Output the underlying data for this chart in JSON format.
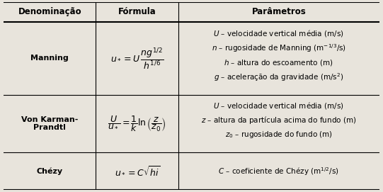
{
  "col_headers": [
    "Denominação",
    "Fórmula",
    "Parâmetros"
  ],
  "bg_color": "#e8e4dc",
  "border_color": "#000000",
  "header_fontsize": 8.5,
  "body_fontsize": 8.0,
  "param_fontsize": 7.5,
  "col_bounds": [
    0.0,
    0.245,
    0.465,
    1.0
  ],
  "row_bounds": [
    1.0,
    0.895,
    0.505,
    0.2,
    0.0
  ],
  "manning_params": [
    "$\\mathit{U}$ – velocidade vertical média (m/s)",
    "$\\mathit{n}$ – rugosidade de Manning (m$^{-1/3}$/s)",
    "$\\mathit{h}$ – altura do escoamento (m)",
    "$\\mathit{g}$ – aceleração da gravidade (m/s$^{2}$)"
  ],
  "vk_params": [
    "$\\mathit{U}$ – velocidade vertical média (m/s)",
    "$\\mathit{z}$ – altura da partícula acima do fundo (m)",
    "$\\mathit{z}_0$ – rugosidade do fundo (m)"
  ],
  "chezy_params": [
    "$\\mathit{C}$ – coeficiente de Chézy (m$^{1/2}$/s)"
  ]
}
